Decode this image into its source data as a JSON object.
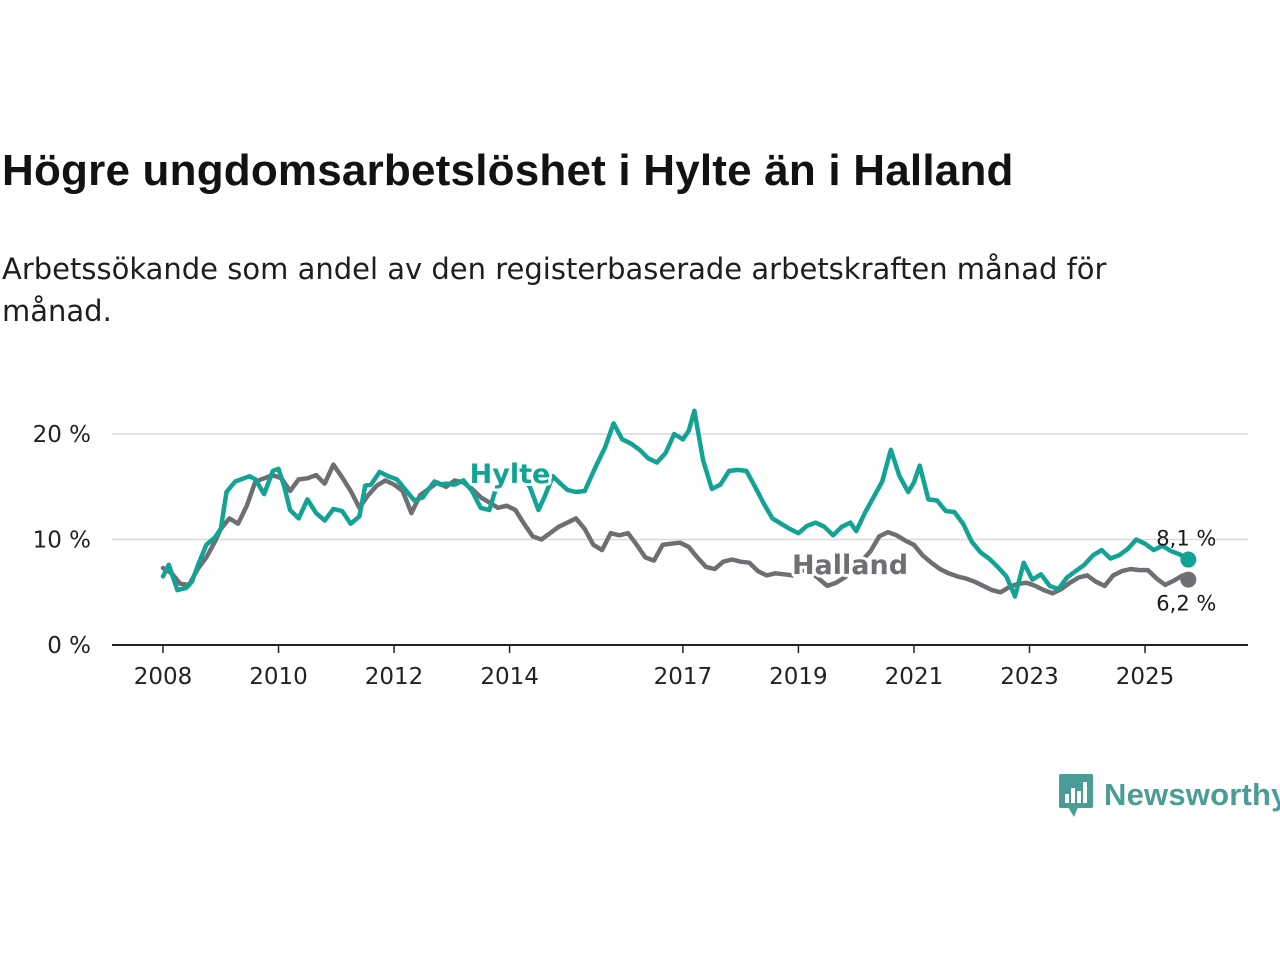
{
  "title": "Högre ungdomsarbetslöshet i Hylte än i Halland",
  "subtitle": "Arbetssökande som andel av den registerbaserade arbetskraften månad för månad.",
  "logo": {
    "text": "Newsworthy",
    "icon": "newsworthy-chart-icon"
  },
  "colors": {
    "hylte": "#12a394",
    "halland": "#6e6e73",
    "grid": "#d9d9d9",
    "axis": "#222222",
    "logo": "#4a9c96"
  },
  "chart_data": {
    "type": "line",
    "title": "Högre ungdomsarbetslöshet i Hylte än i Halland",
    "ylabel": "",
    "ylim": [
      0,
      22
    ],
    "xlim": [
      2008.0,
      2025.9
    ],
    "grid": true,
    "y_ticks": [
      0,
      10,
      20
    ],
    "y_tick_labels": [
      "0 %",
      "10 %",
      "20 %"
    ],
    "x_ticks": [
      2008,
      2010,
      2012,
      2014,
      2017,
      2019,
      2021,
      2023,
      2025
    ],
    "x_tick_labels": [
      "2008",
      "2010",
      "2012",
      "2014",
      "2017",
      "2019",
      "2021",
      "2023",
      "2025"
    ],
    "series": [
      {
        "name": "Hylte",
        "label": "Hylte",
        "end_label": "8,1 %",
        "points": [
          [
            2008.0,
            6.5
          ],
          [
            2008.1,
            7.6
          ],
          [
            2008.25,
            5.2
          ],
          [
            2008.4,
            5.4
          ],
          [
            2008.5,
            6.0
          ],
          [
            2008.6,
            7.5
          ],
          [
            2008.75,
            9.5
          ],
          [
            2008.9,
            10.2
          ],
          [
            2009.0,
            11.0
          ],
          [
            2009.1,
            14.5
          ],
          [
            2009.25,
            15.5
          ],
          [
            2009.4,
            15.8
          ],
          [
            2009.5,
            16.0
          ],
          [
            2009.6,
            15.7
          ],
          [
            2009.75,
            14.3
          ],
          [
            2009.9,
            16.5
          ],
          [
            2010.0,
            16.7
          ],
          [
            2010.1,
            15.0
          ],
          [
            2010.2,
            12.8
          ],
          [
            2010.35,
            12.0
          ],
          [
            2010.5,
            13.8
          ],
          [
            2010.65,
            12.5
          ],
          [
            2010.8,
            11.8
          ],
          [
            2010.95,
            12.9
          ],
          [
            2011.1,
            12.7
          ],
          [
            2011.25,
            11.5
          ],
          [
            2011.4,
            12.2
          ],
          [
            2011.5,
            15.1
          ],
          [
            2011.6,
            15.2
          ],
          [
            2011.75,
            16.4
          ],
          [
            2011.9,
            16.0
          ],
          [
            2012.05,
            15.7
          ],
          [
            2012.2,
            14.7
          ],
          [
            2012.35,
            13.7
          ],
          [
            2012.5,
            14.0
          ],
          [
            2012.6,
            14.8
          ],
          [
            2012.7,
            15.5
          ],
          [
            2012.8,
            15.2
          ],
          [
            2012.9,
            15.3
          ],
          [
            2013.05,
            15.2
          ],
          [
            2013.2,
            15.6
          ],
          [
            2013.35,
            14.6
          ],
          [
            2013.5,
            13.0
          ],
          [
            2013.65,
            12.8
          ],
          [
            2013.8,
            15.5
          ],
          [
            2014.0,
            16.4
          ],
          [
            2014.2,
            16.0
          ],
          [
            2014.35,
            15.0
          ],
          [
            2014.5,
            12.8
          ],
          [
            2014.6,
            14.0
          ],
          [
            2014.75,
            16.0
          ],
          [
            2014.9,
            15.2
          ],
          [
            2015.0,
            14.7
          ],
          [
            2015.15,
            14.5
          ],
          [
            2015.3,
            14.6
          ],
          [
            2015.5,
            17.0
          ],
          [
            2015.65,
            18.7
          ],
          [
            2015.8,
            21.0
          ],
          [
            2015.95,
            19.5
          ],
          [
            2016.1,
            19.1
          ],
          [
            2016.25,
            18.5
          ],
          [
            2016.4,
            17.7
          ],
          [
            2016.55,
            17.3
          ],
          [
            2016.7,
            18.2
          ],
          [
            2016.85,
            20.0
          ],
          [
            2017.0,
            19.5
          ],
          [
            2017.1,
            20.3
          ],
          [
            2017.2,
            22.2
          ],
          [
            2017.35,
            17.5
          ],
          [
            2017.5,
            14.8
          ],
          [
            2017.65,
            15.2
          ],
          [
            2017.8,
            16.5
          ],
          [
            2017.95,
            16.6
          ],
          [
            2018.1,
            16.5
          ],
          [
            2018.25,
            15.0
          ],
          [
            2018.4,
            13.4
          ],
          [
            2018.55,
            12.0
          ],
          [
            2018.7,
            11.5
          ],
          [
            2018.85,
            11.0
          ],
          [
            2019.0,
            10.6
          ],
          [
            2019.15,
            11.3
          ],
          [
            2019.3,
            11.6
          ],
          [
            2019.45,
            11.2
          ],
          [
            2019.6,
            10.4
          ],
          [
            2019.75,
            11.2
          ],
          [
            2019.9,
            11.6
          ],
          [
            2020.0,
            10.8
          ],
          [
            2020.15,
            12.5
          ],
          [
            2020.3,
            14.0
          ],
          [
            2020.45,
            15.5
          ],
          [
            2020.6,
            18.5
          ],
          [
            2020.75,
            16.0
          ],
          [
            2020.9,
            14.5
          ],
          [
            2021.0,
            15.4
          ],
          [
            2021.1,
            17.0
          ],
          [
            2021.25,
            13.8
          ],
          [
            2021.4,
            13.7
          ],
          [
            2021.55,
            12.7
          ],
          [
            2021.7,
            12.6
          ],
          [
            2021.85,
            11.5
          ],
          [
            2022.0,
            9.8
          ],
          [
            2022.15,
            8.8
          ],
          [
            2022.3,
            8.2
          ],
          [
            2022.45,
            7.4
          ],
          [
            2022.6,
            6.5
          ],
          [
            2022.75,
            4.6
          ],
          [
            2022.9,
            7.8
          ],
          [
            2023.05,
            6.2
          ],
          [
            2023.2,
            6.7
          ],
          [
            2023.35,
            5.6
          ],
          [
            2023.5,
            5.3
          ],
          [
            2023.65,
            6.4
          ],
          [
            2023.8,
            7.0
          ],
          [
            2023.95,
            7.6
          ],
          [
            2024.1,
            8.5
          ],
          [
            2024.25,
            9.0
          ],
          [
            2024.4,
            8.2
          ],
          [
            2024.55,
            8.5
          ],
          [
            2024.7,
            9.1
          ],
          [
            2024.85,
            10.0
          ],
          [
            2025.0,
            9.6
          ],
          [
            2025.15,
            9.0
          ],
          [
            2025.3,
            9.4
          ],
          [
            2025.45,
            8.9
          ],
          [
            2025.6,
            8.6
          ],
          [
            2025.75,
            8.1
          ]
        ]
      },
      {
        "name": "Halland",
        "label": "Halland",
        "end_label": "6,2 %",
        "points": [
          [
            2008.0,
            7.3
          ],
          [
            2008.15,
            6.8
          ],
          [
            2008.3,
            5.8
          ],
          [
            2008.45,
            5.7
          ],
          [
            2008.6,
            7.2
          ],
          [
            2008.75,
            8.3
          ],
          [
            2008.9,
            9.8
          ],
          [
            2009.0,
            11.0
          ],
          [
            2009.15,
            12.0
          ],
          [
            2009.3,
            11.5
          ],
          [
            2009.45,
            13.2
          ],
          [
            2009.6,
            15.5
          ],
          [
            2009.75,
            15.8
          ],
          [
            2009.9,
            16.1
          ],
          [
            2010.05,
            15.8
          ],
          [
            2010.2,
            14.6
          ],
          [
            2010.35,
            15.7
          ],
          [
            2010.5,
            15.8
          ],
          [
            2010.65,
            16.1
          ],
          [
            2010.8,
            15.3
          ],
          [
            2010.95,
            17.1
          ],
          [
            2011.1,
            15.9
          ],
          [
            2011.25,
            14.6
          ],
          [
            2011.4,
            13.0
          ],
          [
            2011.55,
            14.2
          ],
          [
            2011.7,
            15.1
          ],
          [
            2011.85,
            15.6
          ],
          [
            2012.0,
            15.2
          ],
          [
            2012.15,
            14.6
          ],
          [
            2012.3,
            12.5
          ],
          [
            2012.45,
            14.2
          ],
          [
            2012.6,
            14.8
          ],
          [
            2012.75,
            15.4
          ],
          [
            2012.9,
            15.0
          ],
          [
            2013.05,
            15.6
          ],
          [
            2013.2,
            15.4
          ],
          [
            2013.35,
            14.8
          ],
          [
            2013.5,
            14.0
          ],
          [
            2013.65,
            13.5
          ],
          [
            2013.8,
            13.0
          ],
          [
            2013.95,
            13.2
          ],
          [
            2014.1,
            12.8
          ],
          [
            2014.25,
            11.5
          ],
          [
            2014.4,
            10.3
          ],
          [
            2014.55,
            10.0
          ],
          [
            2014.7,
            10.6
          ],
          [
            2014.85,
            11.2
          ],
          [
            2015.0,
            11.6
          ],
          [
            2015.15,
            12.0
          ],
          [
            2015.3,
            11.0
          ],
          [
            2015.45,
            9.5
          ],
          [
            2015.6,
            9.0
          ],
          [
            2015.75,
            10.6
          ],
          [
            2015.9,
            10.4
          ],
          [
            2016.05,
            10.6
          ],
          [
            2016.2,
            9.5
          ],
          [
            2016.35,
            8.3
          ],
          [
            2016.5,
            8.0
          ],
          [
            2016.65,
            9.5
          ],
          [
            2016.8,
            9.6
          ],
          [
            2016.95,
            9.7
          ],
          [
            2017.1,
            9.3
          ],
          [
            2017.25,
            8.3
          ],
          [
            2017.4,
            7.4
          ],
          [
            2017.55,
            7.2
          ],
          [
            2017.7,
            7.9
          ],
          [
            2017.85,
            8.1
          ],
          [
            2018.0,
            7.9
          ],
          [
            2018.15,
            7.8
          ],
          [
            2018.3,
            7.0
          ],
          [
            2018.45,
            6.6
          ],
          [
            2018.6,
            6.8
          ],
          [
            2018.75,
            6.7
          ],
          [
            2018.9,
            6.6
          ],
          [
            2019.05,
            7.1
          ],
          [
            2019.2,
            7.0
          ],
          [
            2019.35,
            6.3
          ],
          [
            2019.5,
            5.6
          ],
          [
            2019.65,
            5.9
          ],
          [
            2019.8,
            6.4
          ],
          [
            2019.95,
            7.3
          ],
          [
            2020.1,
            8.0
          ],
          [
            2020.25,
            8.9
          ],
          [
            2020.4,
            10.3
          ],
          [
            2020.55,
            10.7
          ],
          [
            2020.7,
            10.4
          ],
          [
            2020.85,
            9.9
          ],
          [
            2021.0,
            9.5
          ],
          [
            2021.15,
            8.5
          ],
          [
            2021.3,
            7.8
          ],
          [
            2021.45,
            7.2
          ],
          [
            2021.6,
            6.8
          ],
          [
            2021.75,
            6.5
          ],
          [
            2021.9,
            6.3
          ],
          [
            2022.05,
            6.0
          ],
          [
            2022.2,
            5.6
          ],
          [
            2022.35,
            5.2
          ],
          [
            2022.5,
            5.0
          ],
          [
            2022.65,
            5.5
          ],
          [
            2022.8,
            5.8
          ],
          [
            2022.95,
            5.9
          ],
          [
            2023.1,
            5.6
          ],
          [
            2023.25,
            5.2
          ],
          [
            2023.4,
            4.9
          ],
          [
            2023.55,
            5.3
          ],
          [
            2023.7,
            5.9
          ],
          [
            2023.85,
            6.4
          ],
          [
            2024.0,
            6.6
          ],
          [
            2024.15,
            6.0
          ],
          [
            2024.3,
            5.6
          ],
          [
            2024.45,
            6.6
          ],
          [
            2024.6,
            7.0
          ],
          [
            2024.75,
            7.2
          ],
          [
            2024.9,
            7.1
          ],
          [
            2025.05,
            7.1
          ],
          [
            2025.2,
            6.3
          ],
          [
            2025.35,
            5.7
          ],
          [
            2025.5,
            6.1
          ],
          [
            2025.65,
            6.6
          ],
          [
            2025.75,
            6.2
          ]
        ]
      }
    ]
  }
}
